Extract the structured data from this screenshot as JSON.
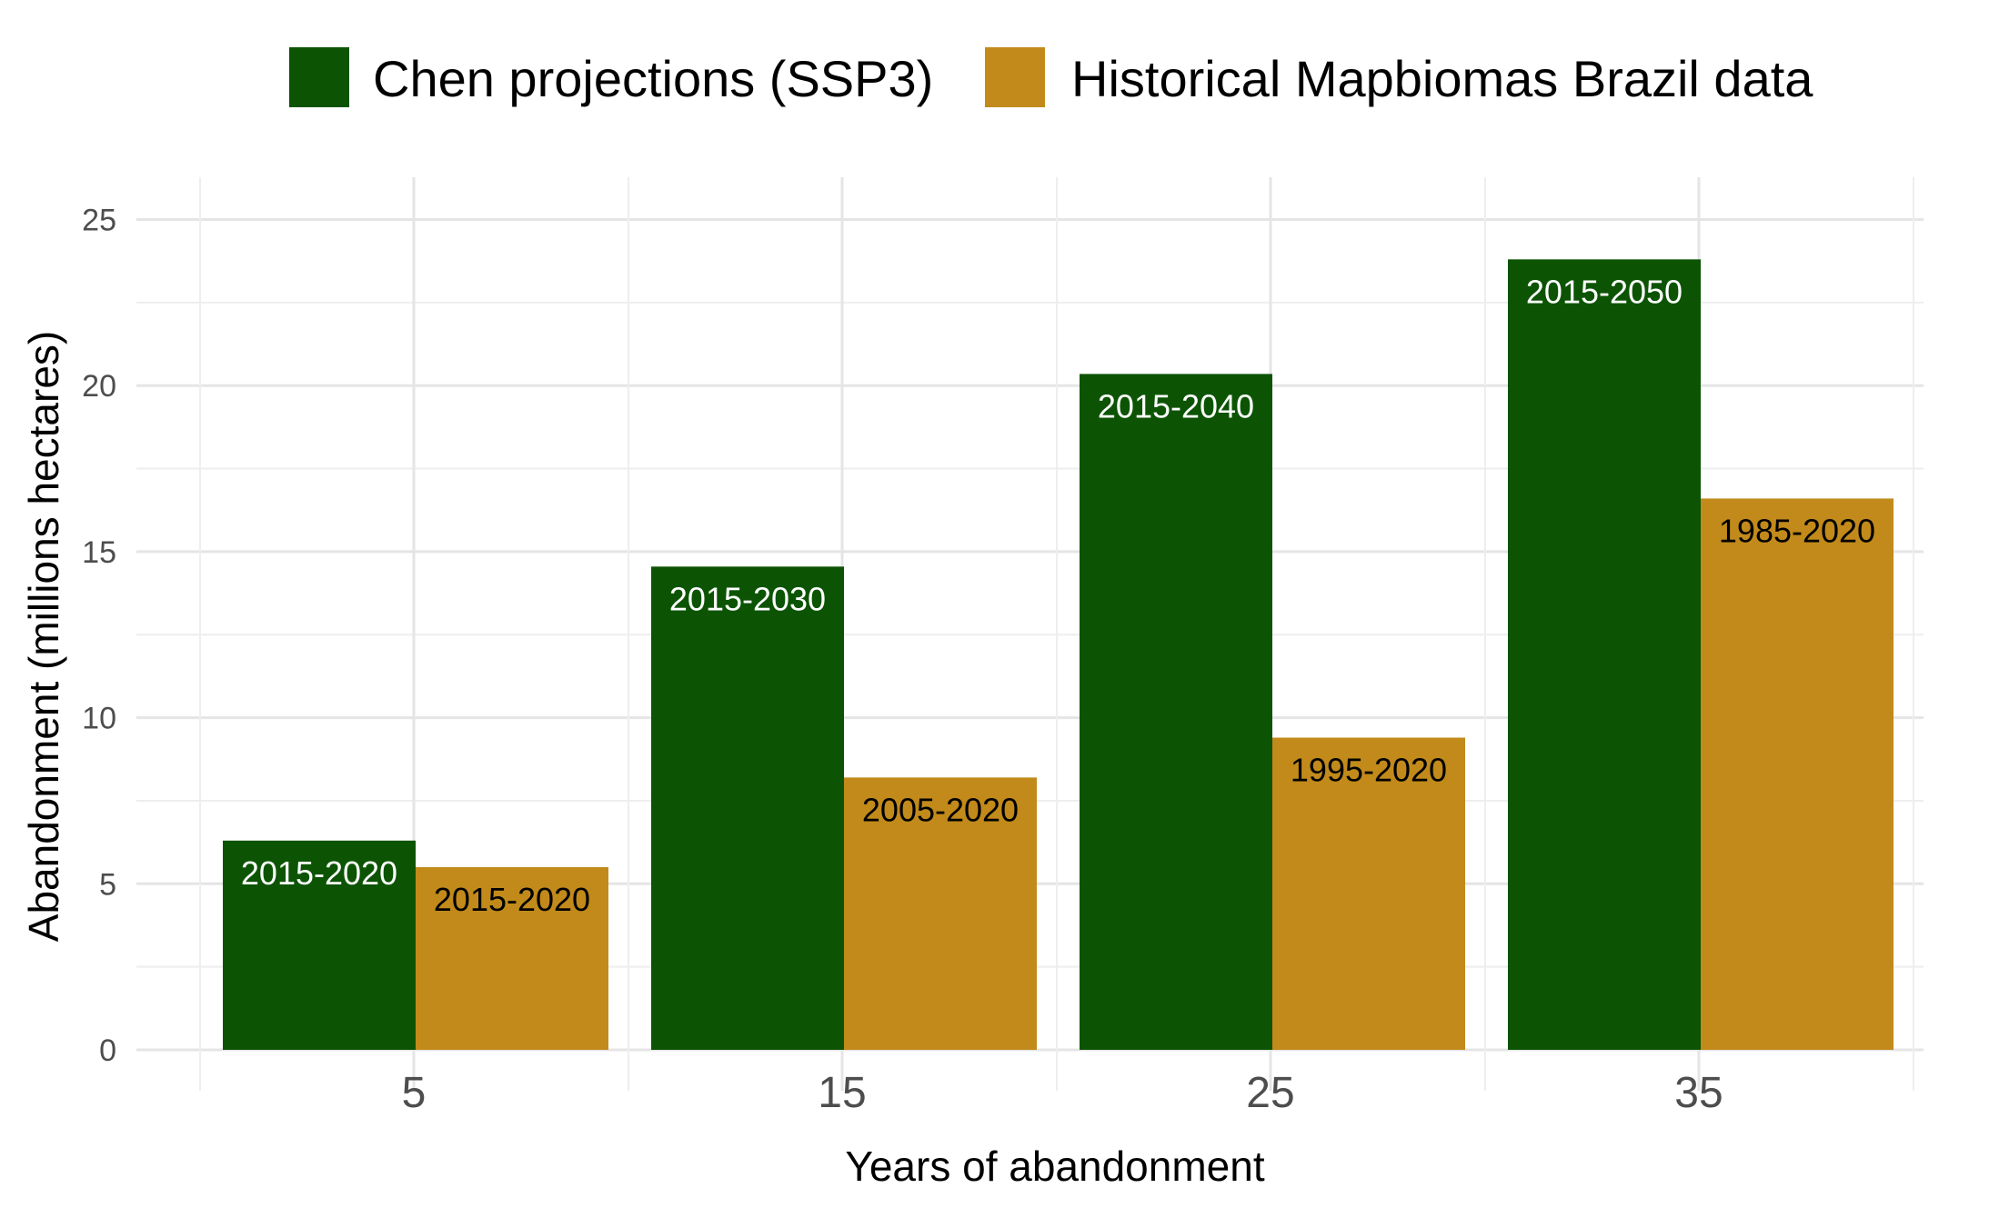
{
  "chart_data": {
    "type": "bar",
    "categories": [
      "5",
      "15",
      "25",
      "35"
    ],
    "series": [
      {
        "name": "Chen projections (SSP3)",
        "color": "#0c5404",
        "label_color": "#ffffff",
        "values": [
          6.3,
          14.55,
          20.35,
          23.8
        ],
        "labels": [
          "2015-2020",
          "2015-2030",
          "2015-2040",
          "2015-2050"
        ]
      },
      {
        "name": "Historical Mapbiomas Brazil data",
        "color": "#c18a1a",
        "label_color": "#000000",
        "values": [
          5.5,
          8.2,
          9.4,
          16.6
        ],
        "labels": [
          "2015-2020",
          "2005-2020",
          "1995-2020",
          "1985-2020"
        ]
      }
    ],
    "xlabel": "Years of abandonment",
    "ylabel": "Abandonment (millions hectares)",
    "ylim": [
      0,
      26
    ],
    "yticks": [
      "0",
      "5",
      "10",
      "15",
      "20",
      "25"
    ],
    "legend_position": "top",
    "grid": true
  }
}
